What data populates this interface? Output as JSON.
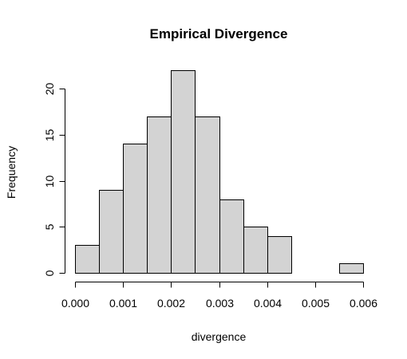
{
  "chart_data": {
    "type": "bar",
    "title": "Empirical Divergence",
    "xlabel": "divergence",
    "ylabel": "Frequency",
    "bin_edges": [
      0.0,
      0.0005,
      0.001,
      0.0015,
      0.002,
      0.0025,
      0.003,
      0.0035,
      0.004,
      0.0045,
      0.005,
      0.0055,
      0.006
    ],
    "values": [
      3,
      9,
      14,
      17,
      22,
      17,
      8,
      5,
      4,
      0,
      0,
      1
    ],
    "xlim": [
      0.0,
      0.006
    ],
    "ylim": [
      0,
      22
    ],
    "x_ticks": [
      0.0,
      0.001,
      0.002,
      0.003,
      0.004,
      0.005,
      0.006
    ],
    "x_tick_labels": [
      "0.000",
      "0.001",
      "0.002",
      "0.003",
      "0.004",
      "0.005",
      "0.006"
    ],
    "y_ticks": [
      0,
      5,
      10,
      15,
      20
    ],
    "y_tick_labels": [
      "0",
      "5",
      "10",
      "15",
      "20"
    ],
    "grid": false,
    "colors": {
      "bar_fill": "#d3d3d3",
      "bar_stroke": "#000000"
    }
  }
}
